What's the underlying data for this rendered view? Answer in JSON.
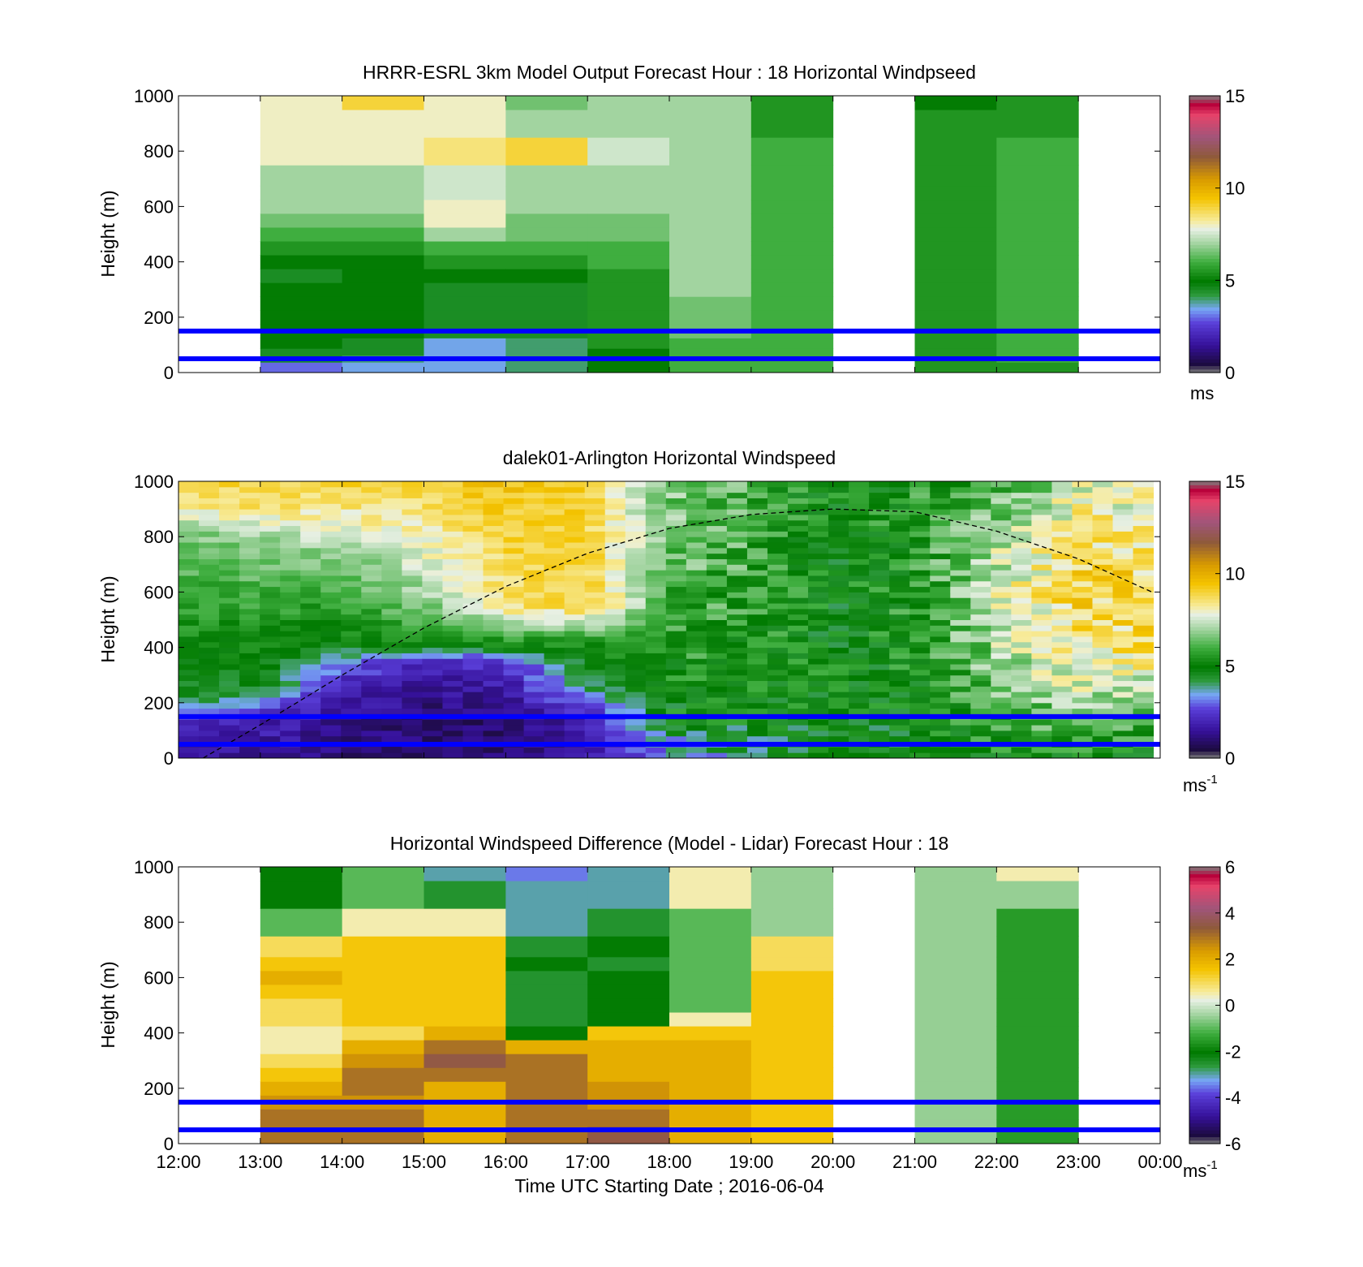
{
  "figure": {
    "xlabel": "Time UTC  Starting Date ; 2016-06-04",
    "ylabel": "Height (m)",
    "xticks": [
      "12:00",
      "13:00",
      "14:00",
      "15:00",
      "16:00",
      "17:00",
      "18:00",
      "19:00",
      "20:00",
      "21:00",
      "22:00",
      "23:00",
      "00:00"
    ],
    "yticks": [
      "0",
      "200",
      "400",
      "600",
      "800",
      "1000"
    ]
  },
  "chart_data": [
    {
      "id": "model",
      "type": "heatmap",
      "title": "HRRR-ESRL 3km Model Output   Forecast Hour : 18 Horizontal Windpseed",
      "ylabel": "Height (m)",
      "xlim": [
        "12:00",
        "00:00"
      ],
      "ylim": [
        0,
        1000
      ],
      "colorbar": {
        "min": 0,
        "max": 15,
        "ticks": [
          "0",
          "5",
          "10",
          "15"
        ],
        "units": "ms"
      },
      "reference_lines_m": [
        50,
        150
      ],
      "x_hours": [
        "13:00",
        "14:00",
        "15:00",
        "16:00",
        "17:00",
        "18:00",
        "19:00",
        "21:00",
        "22:00"
      ],
      "heights_m": [
        25,
        50,
        75,
        100,
        150,
        200,
        250,
        300,
        350,
        400,
        450,
        500,
        550,
        600,
        650,
        700,
        800,
        900,
        1000
      ],
      "values": [
        [
          3.0,
          4.5,
          4.5,
          5.0,
          5.0,
          5.0,
          5.0,
          5.0,
          4.5,
          5.0,
          5.5,
          6.0,
          6.5,
          7.0,
          7.0,
          7.0,
          8.0,
          8.0,
          8.0
        ],
        [
          3.5,
          4.0,
          4.5,
          4.5,
          5.0,
          5.0,
          5.0,
          5.0,
          5.0,
          5.0,
          5.5,
          6.0,
          6.5,
          7.0,
          7.0,
          7.0,
          8.0,
          8.0,
          9.0
        ],
        [
          3.5,
          3.5,
          3.5,
          3.5,
          4.5,
          4.5,
          4.5,
          4.5,
          5.0,
          5.5,
          6.0,
          7.0,
          8.0,
          8.0,
          7.5,
          7.5,
          8.5,
          8.0,
          8.0
        ],
        [
          4.0,
          4.0,
          4.0,
          4.0,
          4.5,
          4.5,
          4.5,
          4.5,
          5.0,
          5.5,
          6.0,
          6.5,
          6.5,
          7.0,
          7.0,
          7.0,
          9.0,
          7.0,
          6.5
        ],
        [
          5.0,
          5.0,
          5.0,
          5.5,
          5.5,
          5.5,
          5.5,
          5.5,
          5.5,
          6.0,
          6.0,
          6.5,
          6.5,
          7.0,
          7.0,
          7.0,
          7.5,
          7.0,
          7.0
        ],
        [
          6.0,
          6.0,
          6.0,
          6.0,
          6.5,
          6.5,
          6.5,
          7.0,
          7.0,
          7.0,
          7.0,
          7.0,
          7.0,
          7.0,
          7.0,
          7.0,
          7.0,
          7.0,
          7.0
        ],
        [
          6.0,
          6.0,
          6.0,
          6.0,
          6.0,
          6.0,
          6.0,
          6.0,
          6.0,
          6.0,
          6.0,
          6.0,
          6.0,
          6.0,
          6.0,
          6.0,
          6.0,
          5.5,
          5.5
        ],
        [
          5.5,
          5.5,
          5.5,
          5.5,
          5.5,
          5.5,
          5.5,
          5.5,
          5.5,
          5.5,
          5.5,
          5.5,
          5.5,
          5.5,
          5.5,
          5.5,
          5.5,
          5.5,
          5.0
        ],
        [
          5.5,
          6.0,
          6.0,
          6.0,
          6.0,
          6.0,
          6.0,
          6.0,
          6.0,
          6.0,
          6.0,
          6.0,
          6.0,
          6.0,
          6.0,
          6.0,
          6.0,
          5.5,
          5.5
        ]
      ]
    },
    {
      "id": "lidar",
      "type": "heatmap",
      "title": "dalek01-Arlington  Horizontal Windspeed",
      "ylabel": "Height (m)",
      "xlim": [
        "12:00",
        "00:00"
      ],
      "ylim": [
        0,
        1000
      ],
      "colorbar": {
        "min": 0,
        "max": 15,
        "ticks": [
          "0",
          "5",
          "10",
          "15"
        ],
        "units": "ms",
        "units_exp": "-1"
      },
      "reference_lines_m": [
        50,
        150
      ],
      "coverage": [
        "12:00",
        "23:55"
      ],
      "boundary_layer_curve": {
        "x_hours": [
          12.3,
          13.0,
          14.0,
          15.0,
          16.0,
          17.0,
          18.0,
          19.0,
          20.0,
          21.0,
          22.0,
          23.0,
          23.9
        ],
        "height_m": [
          0,
          120,
          300,
          470,
          620,
          740,
          830,
          880,
          900,
          890,
          820,
          720,
          600
        ]
      },
      "profiles_by_hour": [
        {
          "hour": 12.0,
          "anchors": [
            [
              0,
              1.5
            ],
            [
              150,
              2.5
            ],
            [
              220,
              4.5
            ],
            [
              500,
              5.5
            ],
            [
              800,
              6.5
            ],
            [
              900,
              8.0
            ],
            [
              1000,
              9.0
            ]
          ]
        },
        {
          "hour": 13.0,
          "anchors": [
            [
              0,
              1.5
            ],
            [
              150,
              2.0
            ],
            [
              250,
              4.5
            ],
            [
              500,
              5.5
            ],
            [
              800,
              7.0
            ],
            [
              900,
              8.5
            ],
            [
              1000,
              9.0
            ]
          ]
        },
        {
          "hour": 14.0,
          "anchors": [
            [
              0,
              1.0
            ],
            [
              150,
              1.5
            ],
            [
              300,
              2.5
            ],
            [
              420,
              5.0
            ],
            [
              700,
              6.5
            ],
            [
              850,
              8.0
            ],
            [
              1000,
              9.0
            ]
          ]
        },
        {
          "hour": 15.0,
          "anchors": [
            [
              0,
              1.0
            ],
            [
              150,
              1.0
            ],
            [
              350,
              2.0
            ],
            [
              420,
              5.5
            ],
            [
              600,
              7.0
            ],
            [
              800,
              8.0
            ],
            [
              1000,
              9.0
            ]
          ]
        },
        {
          "hour": 16.0,
          "anchors": [
            [
              0,
              1.0
            ],
            [
              150,
              1.0
            ],
            [
              350,
              2.5
            ],
            [
              420,
              5.5
            ],
            [
              550,
              8.5
            ],
            [
              800,
              9.0
            ],
            [
              1000,
              9.5
            ]
          ]
        },
        {
          "hour": 17.0,
          "anchors": [
            [
              0,
              1.5
            ],
            [
              150,
              2.0
            ],
            [
              250,
              4.0
            ],
            [
              420,
              5.5
            ],
            [
              550,
              9.0
            ],
            [
              800,
              9.0
            ],
            [
              1000,
              9.0
            ]
          ]
        },
        {
          "hour": 18.0,
          "anchors": [
            [
              0,
              3.0
            ],
            [
              150,
              5.0
            ],
            [
              400,
              5.5
            ],
            [
              600,
              6.0
            ],
            [
              800,
              6.5
            ],
            [
              1000,
              6.5
            ]
          ]
        },
        {
          "hour": 19.0,
          "anchors": [
            [
              0,
              4.0
            ],
            [
              150,
              5.0
            ],
            [
              400,
              5.5
            ],
            [
              700,
              6.0
            ],
            [
              1000,
              6.0
            ]
          ]
        },
        {
          "hour": 20.0,
          "anchors": [
            [
              0,
              4.5
            ],
            [
              150,
              5.0
            ],
            [
              500,
              5.0
            ],
            [
              800,
              5.0
            ],
            [
              1000,
              5.0
            ]
          ]
        },
        {
          "hour": 21.0,
          "anchors": [
            [
              0,
              4.5
            ],
            [
              150,
              5.0
            ],
            [
              500,
              5.5
            ],
            [
              800,
              5.5
            ],
            [
              1000,
              5.5
            ]
          ]
        },
        {
          "hour": 22.0,
          "anchors": [
            [
              0,
              5.0
            ],
            [
              150,
              6.0
            ],
            [
              400,
              7.0
            ],
            [
              600,
              7.5
            ],
            [
              800,
              7.0
            ],
            [
              1000,
              6.0
            ]
          ]
        },
        {
          "hour": 23.0,
          "anchors": [
            [
              0,
              5.0
            ],
            [
              150,
              6.5
            ],
            [
              400,
              8.5
            ],
            [
              600,
              9.0
            ],
            [
              800,
              8.5
            ],
            [
              1000,
              7.5
            ]
          ]
        }
      ]
    },
    {
      "id": "difference",
      "type": "heatmap",
      "title": "Horizontal Windspeed Difference (Model - Lidar) Forecast Hour : 18",
      "ylabel": "Height (m)",
      "xlabel": "Time UTC  Starting Date ; 2016-06-04",
      "xlim": [
        "12:00",
        "00:00"
      ],
      "ylim": [
        0,
        1000
      ],
      "colorbar": {
        "min": -6,
        "max": 6,
        "ticks": [
          "-6",
          "-4",
          "-2",
          "0",
          "2",
          "4",
          "6"
        ],
        "units": "ms",
        "units_exp": "-1"
      },
      "reference_lines_m": [
        50,
        150
      ],
      "x_hours": [
        "13:00",
        "14:00",
        "15:00",
        "16:00",
        "17:00",
        "18:00",
        "19:00",
        "21:00",
        "22:00"
      ],
      "heights_m": [
        25,
        50,
        75,
        100,
        150,
        200,
        250,
        300,
        350,
        400,
        450,
        500,
        550,
        600,
        650,
        700,
        800,
        900,
        1000
      ],
      "values": [
        [
          3.0,
          3.0,
          3.0,
          3.0,
          2.5,
          2.0,
          1.5,
          1.0,
          0.5,
          0.5,
          1.0,
          1.0,
          1.5,
          2.0,
          1.5,
          1.0,
          -1.0,
          -2.0,
          -2.0
        ],
        [
          3.0,
          3.0,
          3.0,
          3.0,
          2.5,
          3.0,
          3.0,
          2.5,
          2.0,
          1.0,
          1.5,
          1.5,
          1.5,
          1.5,
          1.5,
          1.5,
          0.5,
          -1.0,
          -1.0
        ],
        [
          2.0,
          2.0,
          2.0,
          2.0,
          2.0,
          2.0,
          3.0,
          3.5,
          3.0,
          2.0,
          1.5,
          1.5,
          1.5,
          1.5,
          1.5,
          1.5,
          0.5,
          -2.5,
          -3.0
        ],
        [
          3.0,
          3.0,
          3.0,
          3.0,
          3.0,
          3.0,
          3.0,
          3.0,
          2.0,
          -2.0,
          -2.5,
          -2.5,
          -2.5,
          -2.5,
          -2.0,
          -2.5,
          -3.0,
          -3.0,
          -3.5
        ],
        [
          3.5,
          3.5,
          3.0,
          3.0,
          2.5,
          2.5,
          2.0,
          2.0,
          2.0,
          1.5,
          -2.0,
          -2.0,
          -2.0,
          -2.0,
          -2.5,
          -2.0,
          -2.5,
          -3.0,
          -3.0
        ],
        [
          2.0,
          2.0,
          2.0,
          2.0,
          2.0,
          2.0,
          2.0,
          2.0,
          2.0,
          1.5,
          0.5,
          -1.0,
          -1.0,
          -1.0,
          -1.0,
          -1.0,
          -1.0,
          0.5,
          0.5
        ],
        [
          1.5,
          1.5,
          1.5,
          1.5,
          1.5,
          1.5,
          1.5,
          1.5,
          1.5,
          1.5,
          1.5,
          1.5,
          1.5,
          1.5,
          1.0,
          1.0,
          -0.5,
          -0.5,
          -0.5
        ],
        [
          -0.5,
          -0.5,
          -0.5,
          -0.5,
          -0.5,
          -0.5,
          -0.5,
          -0.5,
          -0.5,
          -0.5,
          -0.5,
          -0.5,
          -0.5,
          -0.5,
          -0.5,
          -0.5,
          -0.5,
          -0.5,
          -0.5
        ],
        [
          -1.5,
          -1.5,
          -1.5,
          -1.5,
          -1.5,
          -1.5,
          -1.5,
          -1.5,
          -1.5,
          -1.5,
          -1.5,
          -1.5,
          -1.5,
          -1.5,
          -1.5,
          -1.5,
          -1.5,
          -0.5,
          0.5
        ]
      ]
    }
  ],
  "colors": {
    "reference_line": "#0000ff",
    "boundary_layer_line": "#000000",
    "colormap_stops": [
      [
        0.0,
        "#7f7f7f"
      ],
      [
        0.03,
        "#1c0b3f"
      ],
      [
        0.1,
        "#36119a"
      ],
      [
        0.18,
        "#5a3fd9"
      ],
      [
        0.23,
        "#77a6f5"
      ],
      [
        0.28,
        "#2d9a3c"
      ],
      [
        0.33,
        "#007a00"
      ],
      [
        0.4,
        "#3fae3f"
      ],
      [
        0.47,
        "#a7d6a5"
      ],
      [
        0.52,
        "#e8f0e4"
      ],
      [
        0.55,
        "#f7eb9a"
      ],
      [
        0.63,
        "#f4c400"
      ],
      [
        0.7,
        "#d89a00"
      ],
      [
        0.78,
        "#8f5a3a"
      ],
      [
        0.85,
        "#a0557a"
      ],
      [
        0.93,
        "#e6436a"
      ],
      [
        0.97,
        "#b8003a"
      ],
      [
        1.0,
        "#7f7f7f"
      ]
    ]
  }
}
